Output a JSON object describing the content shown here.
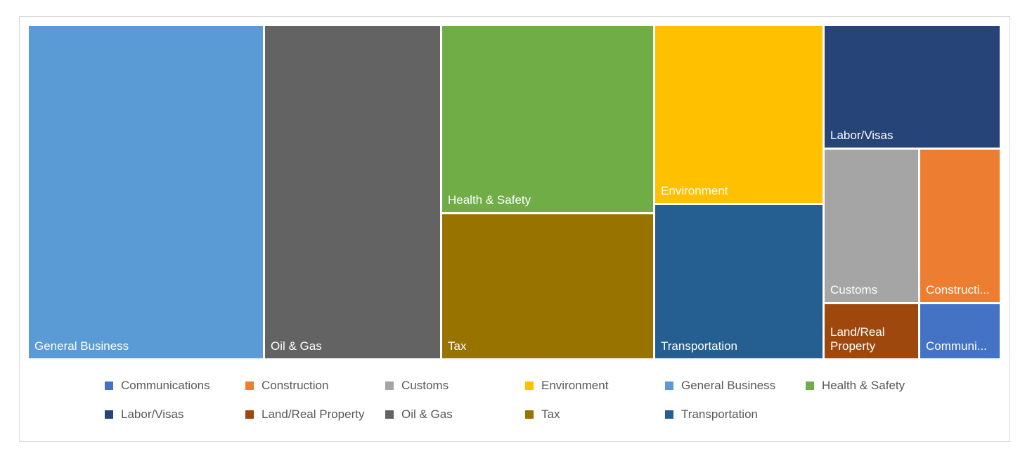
{
  "chart_data": {
    "type": "treemap",
    "title": "",
    "items": [
      {
        "name": "General Business",
        "label": "General Business",
        "color": "#5b9bd5"
      },
      {
        "name": "Oil & Gas",
        "label": "Oil & Gas",
        "color": "#636363"
      },
      {
        "name": "Health & Safety",
        "label": "Health & Safety",
        "color": "#70ad47"
      },
      {
        "name": "Tax",
        "label": "Tax",
        "color": "#997300"
      },
      {
        "name": "Environment",
        "label": "Environment",
        "color": "#ffc000"
      },
      {
        "name": "Transportation",
        "label": "Transportation",
        "color": "#255e91"
      },
      {
        "name": "Labor/Visas",
        "label": "Labor/Visas",
        "color": "#264478"
      },
      {
        "name": "Customs",
        "label": "Customs",
        "color": "#a5a5a5"
      },
      {
        "name": "Construction",
        "label": "Constructi...",
        "color": "#ed7d31"
      },
      {
        "name": "Land/Real Property",
        "label": "Land/Real Property",
        "color": "#9e480e"
      },
      {
        "name": "Communications",
        "label": "Communi...",
        "color": "#4472c4"
      }
    ],
    "legend": {
      "position": "bottom",
      "entries": [
        {
          "name": "Communications",
          "color": "#4472c4"
        },
        {
          "name": "Construction",
          "color": "#ed7d31"
        },
        {
          "name": "Customs",
          "color": "#a5a5a5"
        },
        {
          "name": "Environment",
          "color": "#ffc000"
        },
        {
          "name": "General Business",
          "color": "#5b9bd5"
        },
        {
          "name": "Health & Safety",
          "color": "#70ad47"
        },
        {
          "name": "Labor/Visas",
          "color": "#264478"
        },
        {
          "name": "Land/Real Property",
          "color": "#9e480e"
        },
        {
          "name": "Oil & Gas",
          "color": "#636363"
        },
        {
          "name": "Tax",
          "color": "#997300"
        },
        {
          "name": "Transportation",
          "color": "#255e91"
        }
      ]
    }
  }
}
